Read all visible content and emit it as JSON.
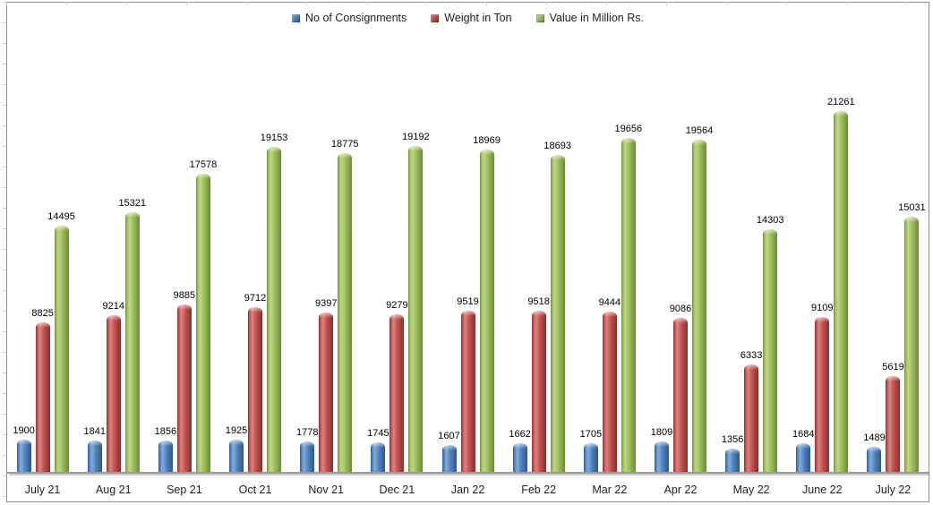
{
  "chart_data": {
    "type": "bar",
    "title": "",
    "xlabel": "",
    "ylabel": "",
    "ylim": [
      0,
      22500
    ],
    "grid": false,
    "legend_position": "top",
    "data_labels": true,
    "categories": [
      "July 21",
      "Aug 21",
      "Sep 21",
      "Oct 21",
      "Nov 21",
      "Dec 21",
      "Jan 22",
      "Feb 22",
      "Mar 22",
      "Apr 22",
      "May 22",
      "June 22",
      "July 22"
    ],
    "series": [
      {
        "name": "No of Consignments",
        "color": "#4F81BD",
        "color_light": "#83ABDC",
        "color_dark": "#2E5788",
        "values": [
          1900,
          1841,
          1856,
          1925,
          1778,
          1745,
          1607,
          1662,
          1705,
          1809,
          1356,
          1684,
          1489
        ]
      },
      {
        "name": "Weight in Ton",
        "color": "#C0504D",
        "color_light": "#D98480",
        "color_dark": "#84302E",
        "values": [
          8825,
          9214,
          9885,
          9712,
          9397,
          9279,
          9519,
          9518,
          9444,
          9086,
          6333,
          9109,
          5619
        ]
      },
      {
        "name": "Value in Million Rs.",
        "color": "#9BBB59",
        "color_light": "#BFD686",
        "color_dark": "#6A8A39",
        "values": [
          14495,
          15321,
          17578,
          19153,
          18775,
          19192,
          18969,
          18693,
          19656,
          19564,
          14303,
          21261,
          15031
        ]
      }
    ]
  },
  "axes": {
    "axis_color": "#9B9B9B",
    "border_color": "#8F8F8F",
    "label_color": "#1F1F1F"
  }
}
